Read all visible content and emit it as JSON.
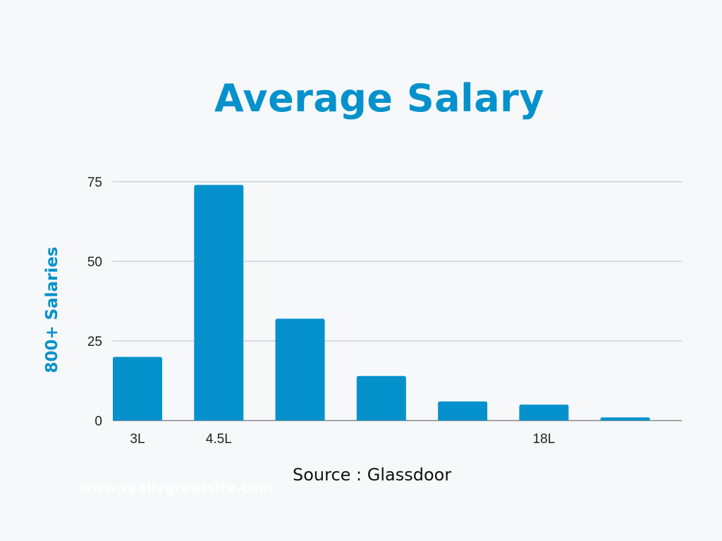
{
  "chart_data": {
    "type": "bar",
    "title": "Average Salary",
    "xlabel": "",
    "ylabel": "800+ Salaries",
    "categories": [
      "3L",
      "4.5L",
      "",
      "",
      "",
      "18L",
      ""
    ],
    "values": [
      20,
      74,
      32,
      14,
      6,
      5,
      1
    ],
    "ylim": [
      0,
      75
    ],
    "yticks": [
      0,
      25,
      50,
      75
    ],
    "grid": true,
    "bar_color": "#0592cc"
  },
  "footer": {
    "source": "Source : Glassdoor",
    "website": "www.reallygreatsite.com"
  }
}
